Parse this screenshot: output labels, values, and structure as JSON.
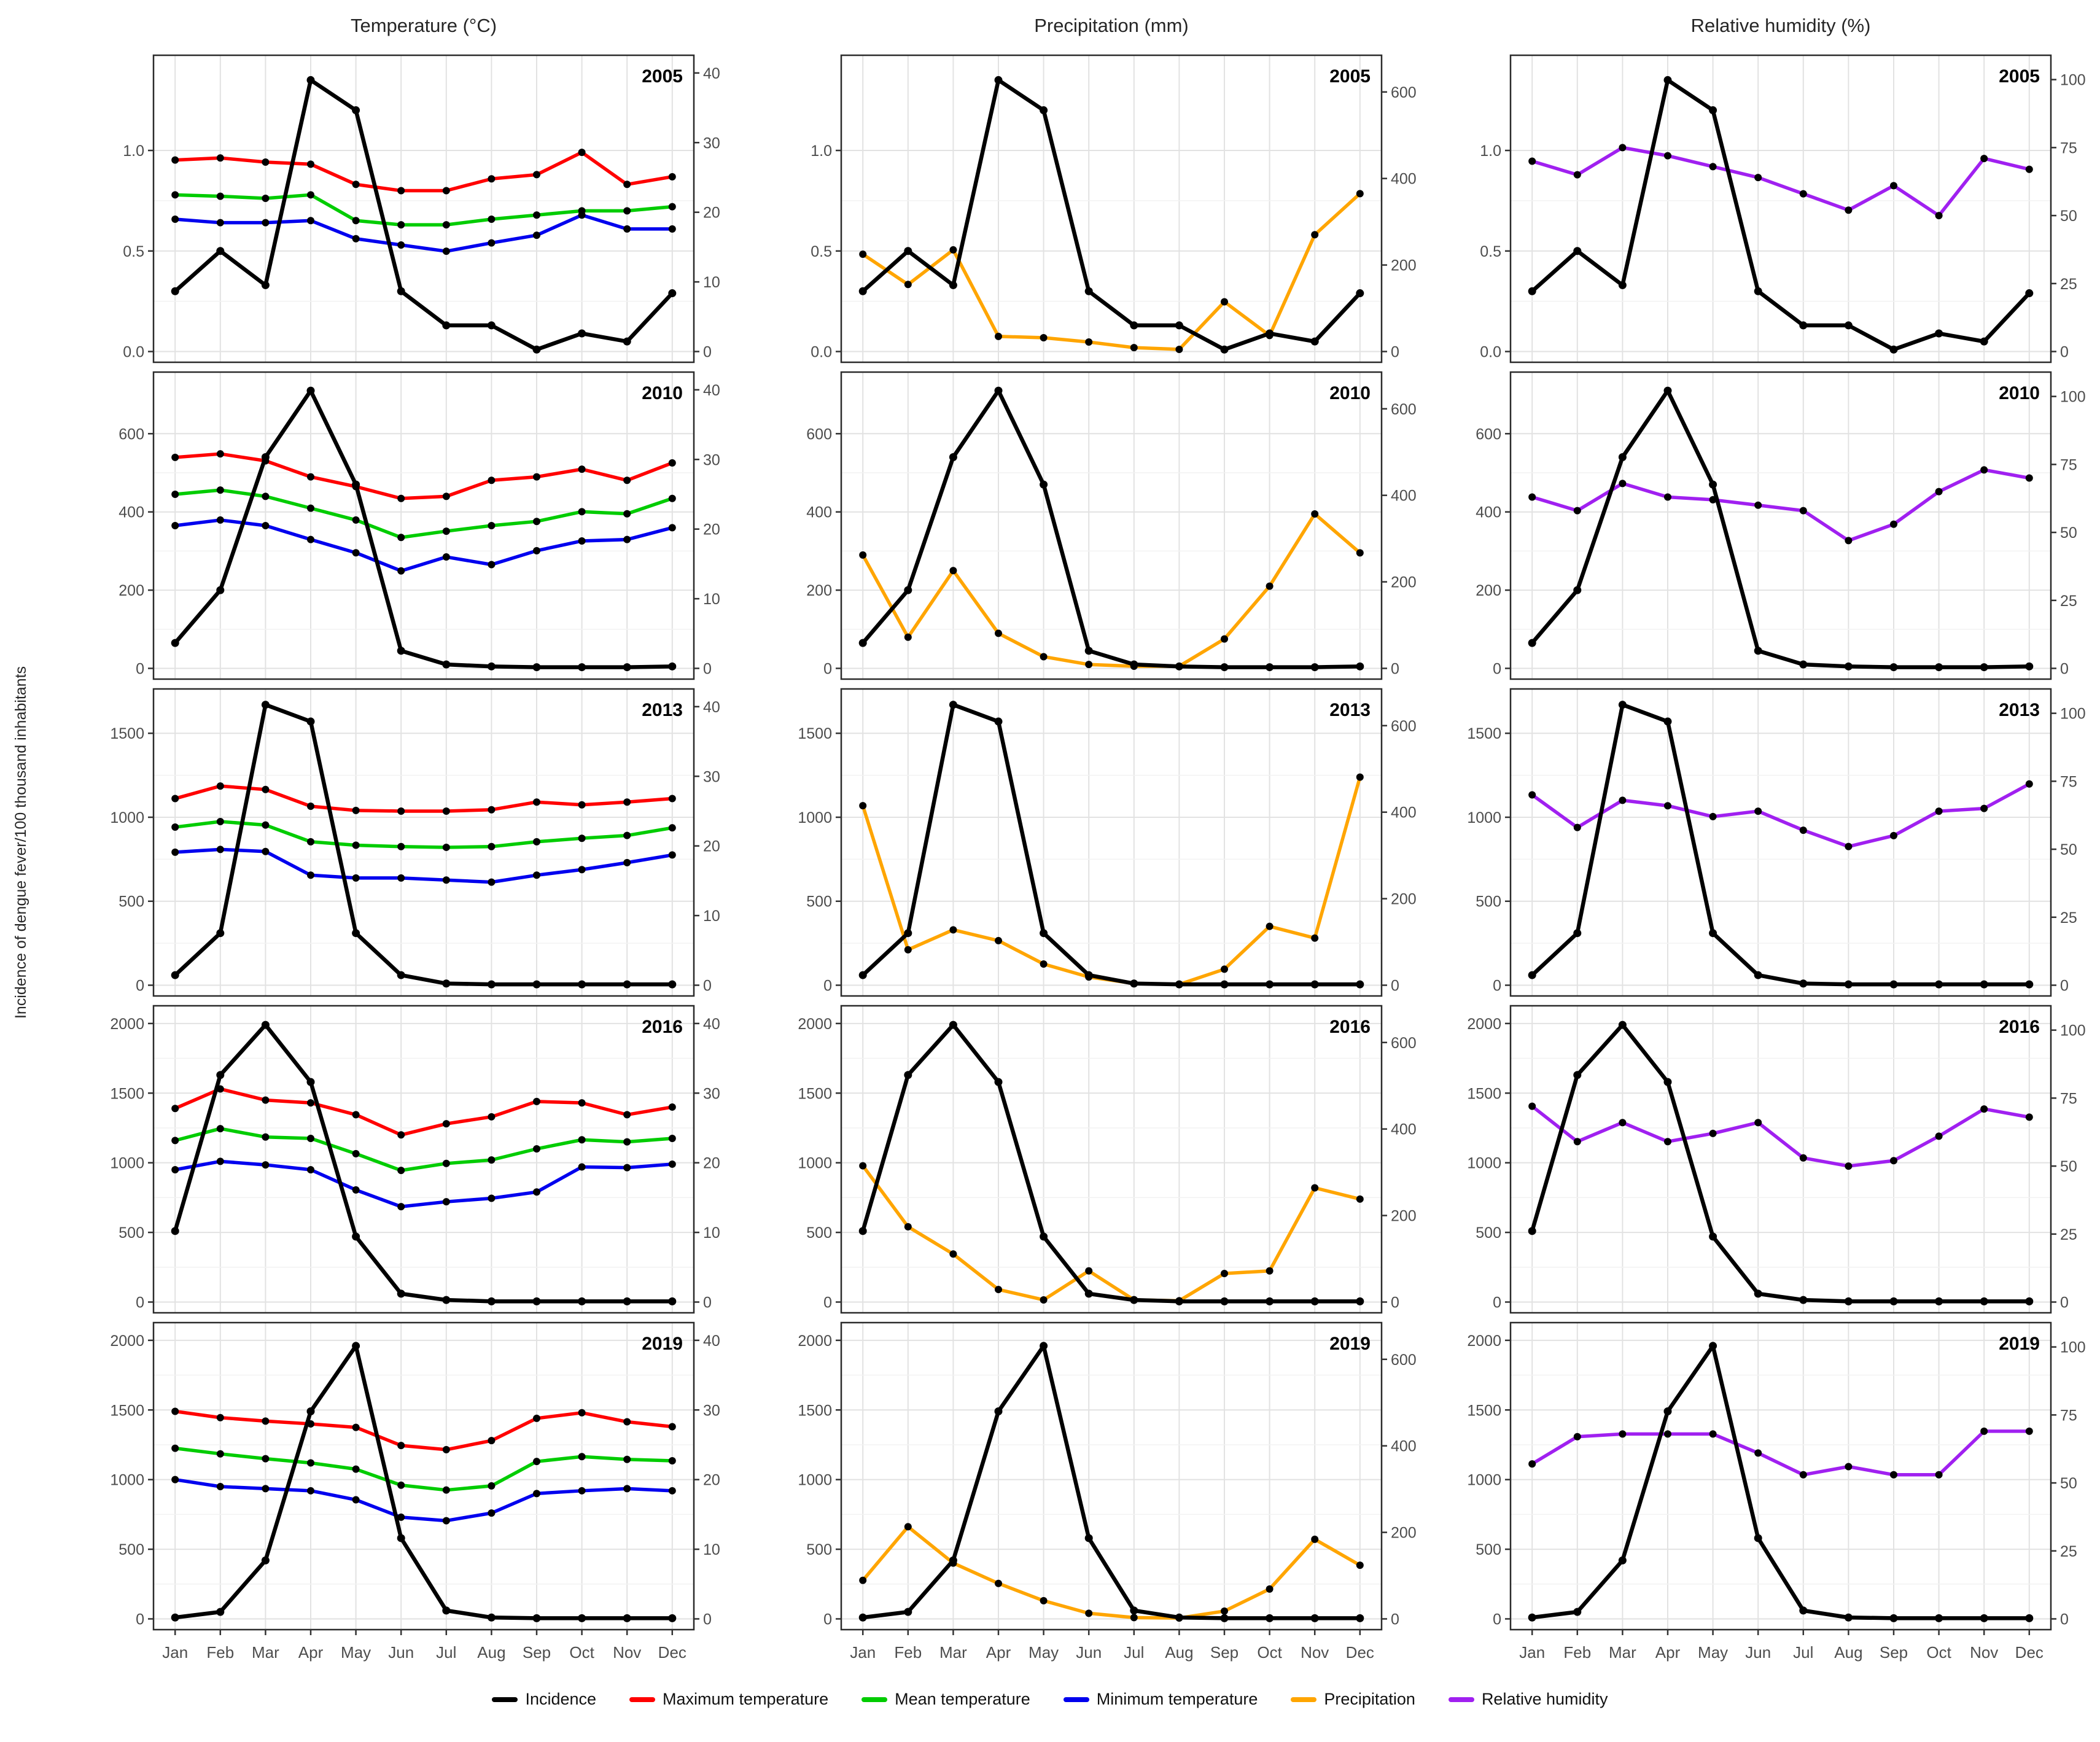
{
  "figure": {
    "ylabel": "Incidence of dengue fever/100 thousand inhabitants",
    "months": [
      "Jan",
      "Feb",
      "Mar",
      "Apr",
      "May",
      "Jun",
      "Jul",
      "Aug",
      "Sep",
      "Oct",
      "Nov",
      "Dec"
    ],
    "colors": {
      "incidence": "#000000",
      "max_temp": "#FF0000",
      "mean_temp": "#00CC00",
      "min_temp": "#0000EE",
      "precip": "#FFA500",
      "humidity": "#A020F0",
      "grid_major": "#E2E2E2",
      "grid_minor": "#F2F2F2",
      "panel_border": "#2B2B2B",
      "tick_label": "#4D4D4D"
    },
    "legend": [
      {
        "key": "incidence",
        "label": "Incidence",
        "color": "#000000"
      },
      {
        "key": "max_temp",
        "label": "Maximum temperature",
        "color": "#FF0000"
      },
      {
        "key": "mean_temp",
        "label": "Mean temperature",
        "color": "#00CC00"
      },
      {
        "key": "min_temp",
        "label": "Minimum temperature",
        "color": "#0000EE"
      },
      {
        "key": "precip",
        "label": "Precipitation",
        "color": "#FFA500"
      },
      {
        "key": "humidity",
        "label": "Relative humidity",
        "color": "#A020F0"
      }
    ]
  },
  "chart_data": {
    "type": "line",
    "categories": [
      "Jan",
      "Feb",
      "Mar",
      "Apr",
      "May",
      "Jun",
      "Jul",
      "Aug",
      "Sep",
      "Oct",
      "Nov",
      "Dec"
    ],
    "columns": [
      {
        "title": "Temperature (°C)",
        "series_keys": [
          "max_temp",
          "mean_temp",
          "min_temp"
        ],
        "right_ticks": [
          0,
          10,
          20,
          30,
          40
        ],
        "right_max": 41
      },
      {
        "title": "Precipitation (mm)",
        "series_keys": [
          "precip"
        ],
        "right_ticks": [
          0,
          200,
          400,
          600
        ],
        "right_max": 660
      },
      {
        "title": "Relative humidity (%)",
        "series_keys": [
          "humidity"
        ],
        "right_ticks": [
          0,
          25,
          50,
          75,
          100
        ],
        "right_max": 105
      }
    ],
    "rows": [
      {
        "year": "2005",
        "left_tick_values": [
          0,
          0.5,
          1.0
        ],
        "left_tick_labels": [
          "0.0",
          "0.5",
          "1.0"
        ],
        "left_max": 1.42,
        "incidence": [
          0.3,
          0.5,
          0.33,
          1.35,
          1.2,
          0.3,
          0.13,
          0.13,
          0.01,
          0.09,
          0.05,
          0.29
        ],
        "max_temp": [
          27.5,
          27.8,
          27.2,
          26.9,
          24.0,
          23.1,
          23.1,
          24.8,
          25.4,
          28.6,
          24.0,
          25.1
        ],
        "mean_temp": [
          22.5,
          22.3,
          22.0,
          22.5,
          18.8,
          18.2,
          18.2,
          19.0,
          19.6,
          20.2,
          20.2,
          20.8
        ],
        "min_temp": [
          19.0,
          18.5,
          18.5,
          18.8,
          16.2,
          15.3,
          14.4,
          15.6,
          16.7,
          19.6,
          17.6,
          17.6
        ],
        "precip": [
          225,
          155,
          235,
          35,
          32,
          22,
          9,
          5,
          115,
          37,
          270,
          365
        ],
        "humidity": [
          70,
          65,
          75,
          72,
          68,
          64,
          58,
          52,
          61,
          50,
          71,
          67
        ]
      },
      {
        "year": "2010",
        "left_tick_values": [
          0,
          200,
          400,
          600
        ],
        "left_tick_labels": [
          "0",
          "200",
          "400",
          "600"
        ],
        "left_max": 730,
        "incidence": [
          65,
          200,
          540,
          710,
          470,
          45,
          10,
          5,
          3,
          3,
          3,
          5
        ],
        "max_temp": [
          30.3,
          30.8,
          29.8,
          27.5,
          26.1,
          24.4,
          24.7,
          27.0,
          27.5,
          28.6,
          27.0,
          29.5
        ],
        "mean_temp": [
          25.0,
          25.6,
          24.7,
          23.0,
          21.3,
          18.8,
          19.7,
          20.5,
          21.1,
          22.5,
          22.2,
          24.4
        ],
        "min_temp": [
          20.5,
          21.3,
          20.5,
          18.5,
          16.6,
          14.0,
          16.0,
          14.9,
          16.9,
          18.3,
          18.5,
          20.2
        ],
        "precip": [
          262,
          72,
          226,
          81,
          27,
          9,
          5,
          5,
          68,
          190,
          357,
          267
        ],
        "humidity": [
          63,
          58,
          68,
          63,
          62,
          60,
          58,
          47,
          53,
          65,
          73,
          70
        ]
      },
      {
        "year": "2013",
        "left_tick_values": [
          0,
          500,
          1000,
          1500
        ],
        "left_tick_labels": [
          "0",
          "500",
          "1000",
          "1500"
        ],
        "left_max": 1700,
        "incidence": [
          60,
          310,
          1670,
          1570,
          310,
          60,
          10,
          5,
          5,
          5,
          5,
          5
        ],
        "max_temp": [
          26.8,
          28.6,
          28.1,
          25.7,
          25.1,
          25.0,
          25.0,
          25.2,
          26.3,
          25.9,
          26.3,
          26.8
        ],
        "mean_temp": [
          22.7,
          23.5,
          23.0,
          20.6,
          20.1,
          19.9,
          19.8,
          19.9,
          20.6,
          21.1,
          21.5,
          22.6
        ],
        "min_temp": [
          19.1,
          19.5,
          19.2,
          15.8,
          15.4,
          15.4,
          15.1,
          14.8,
          15.8,
          16.6,
          17.6,
          18.7
        ],
        "precip": [
          415,
          82,
          128,
          103,
          49,
          19,
          4,
          2,
          37,
          136,
          109,
          481
        ],
        "humidity": [
          70,
          58,
          68,
          66,
          62,
          64,
          57,
          51,
          55,
          64,
          65,
          74
        ]
      },
      {
        "year": "2016",
        "left_tick_values": [
          0,
          500,
          1000,
          1500,
          2000
        ],
        "left_tick_labels": [
          "0",
          "500",
          "1000",
          "1500",
          "2000"
        ],
        "left_max": 2050,
        "incidence": [
          510,
          1630,
          1990,
          1580,
          470,
          60,
          15,
          5,
          5,
          5,
          5,
          5
        ],
        "max_temp": [
          27.8,
          30.6,
          29.0,
          28.6,
          26.9,
          24.0,
          25.6,
          26.6,
          28.8,
          28.6,
          26.9,
          28.0
        ],
        "mean_temp": [
          23.2,
          24.9,
          23.7,
          23.5,
          21.3,
          18.9,
          19.9,
          20.4,
          22.0,
          23.3,
          23.0,
          23.5
        ],
        "min_temp": [
          19.0,
          20.2,
          19.7,
          19.0,
          16.1,
          13.7,
          14.4,
          14.9,
          15.8,
          19.4,
          19.3,
          19.8
        ],
        "precip": [
          315,
          174,
          111,
          29,
          5,
          72,
          5,
          3,
          66,
          72,
          264,
          238
        ],
        "humidity": [
          72,
          59,
          66,
          59,
          62,
          66,
          53,
          50,
          52,
          61,
          71,
          68
        ]
      },
      {
        "year": "2019",
        "left_tick_values": [
          0,
          500,
          1000,
          1500,
          2000
        ],
        "left_tick_labels": [
          "0",
          "500",
          "1000",
          "1500",
          "2000"
        ],
        "left_max": 2050,
        "incidence": [
          10,
          50,
          420,
          1490,
          1960,
          580,
          60,
          10,
          5,
          5,
          5,
          5
        ],
        "max_temp": [
          29.8,
          28.9,
          28.4,
          28.0,
          27.5,
          24.9,
          24.3,
          25.6,
          28.8,
          29.6,
          28.3,
          27.6
        ],
        "mean_temp": [
          24.5,
          23.7,
          23.0,
          22.4,
          21.5,
          19.2,
          18.5,
          19.1,
          22.6,
          23.3,
          22.9,
          22.7
        ],
        "min_temp": [
          20.0,
          19.0,
          18.7,
          18.4,
          17.1,
          14.6,
          14.1,
          15.2,
          18.0,
          18.4,
          18.7,
          18.4
        ],
        "precip": [
          89,
          213,
          129,
          82,
          42,
          13,
          3,
          2,
          18,
          69,
          184,
          124
        ],
        "humidity": [
          57,
          67,
          68,
          68,
          68,
          61,
          53,
          56,
          53,
          53,
          69,
          69
        ]
      }
    ],
    "title": "",
    "xlabel": "",
    "ylabel_left": "Incidence of dengue fever/100 thousand inhabitants",
    "grid": true,
    "legend_position": "bottom"
  }
}
